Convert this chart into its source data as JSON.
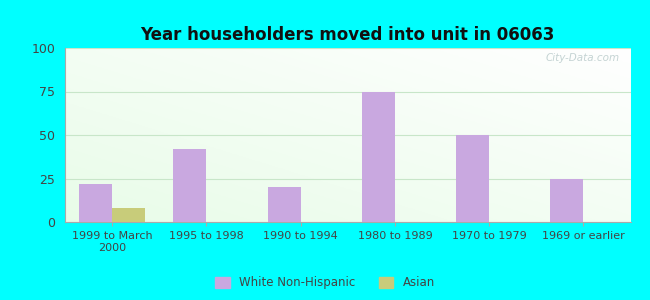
{
  "title": "Year householders moved into unit in 06063",
  "categories": [
    "1999 to March\n2000",
    "1995 to 1998",
    "1990 to 1994",
    "1980 to 1989",
    "1970 to 1979",
    "1969 or earlier"
  ],
  "white_values": [
    22,
    42,
    20,
    75,
    50,
    25
  ],
  "asian_values": [
    8,
    0,
    0,
    0,
    0,
    0
  ],
  "white_color": "#c9a8e0",
  "asian_color": "#c8cc7a",
  "ylim": [
    0,
    100
  ],
  "yticks": [
    0,
    25,
    50,
    75,
    100
  ],
  "outer_bg": "#00ffff",
  "bar_width": 0.35,
  "watermark": "City-Data.com",
  "legend_labels": [
    "White Non-Hispanic",
    "Asian"
  ],
  "grid_color": "#c8e6c9",
  "spine_color": "#aaaaaa"
}
